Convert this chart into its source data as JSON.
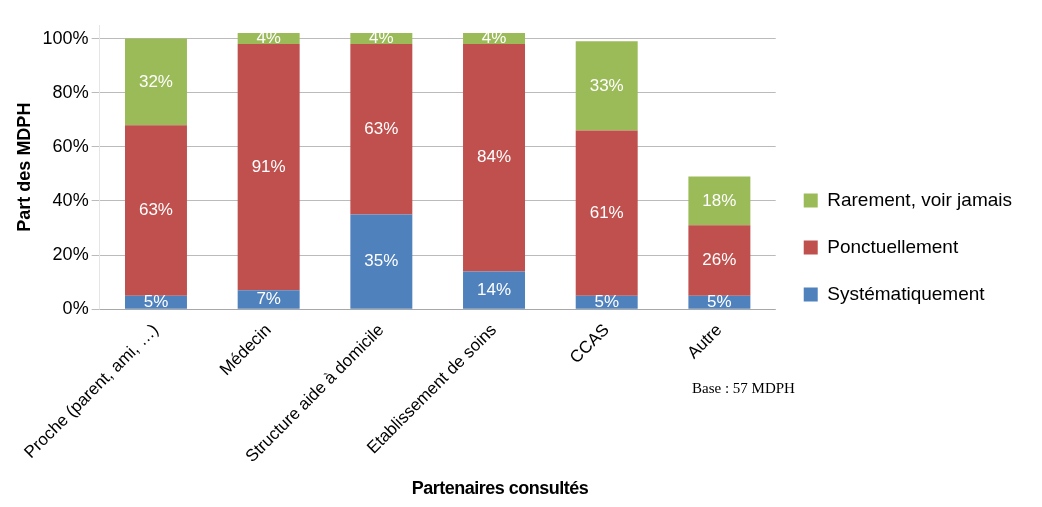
{
  "chart_data": {
    "type": "bar",
    "stacked": true,
    "xlabel": "Partenaires consultés",
    "ylabel": "Part des MDPH",
    "categories": [
      "Proche (parent, ami, …)",
      "Médecin",
      "Structure aide à domicile",
      "Etablissement de soins",
      "CCAS",
      "Autre"
    ],
    "series": [
      {
        "name": "Systématiquement",
        "color": "#4f81bd",
        "values": [
          5,
          7,
          35,
          14,
          5,
          5
        ],
        "value_labels": [
          "5%",
          "7%",
          "35%",
          "14%",
          "5%",
          "5%"
        ]
      },
      {
        "name": "Ponctuellement",
        "color": "#c0504d",
        "values": [
          63,
          91,
          63,
          84,
          61,
          26
        ],
        "value_labels": [
          "63%",
          "91%",
          "63%",
          "84%",
          "61%",
          "26%"
        ]
      },
      {
        "name": "Rarement, voir jamais",
        "color": "#9bbb59",
        "values": [
          32,
          4,
          4,
          4,
          33,
          18
        ],
        "value_labels": [
          "32%",
          "4%",
          "4%",
          "4%",
          "33%",
          "18%"
        ]
      }
    ],
    "ylim": [
      0,
      105
    ],
    "yticks": [
      {
        "value": 0,
        "label": "0%"
      },
      {
        "value": 20,
        "label": "20%"
      },
      {
        "value": 40,
        "label": "40%"
      },
      {
        "value": 60,
        "label": "60%"
      },
      {
        "value": 80,
        "label": "80%"
      },
      {
        "value": 100,
        "label": "100%"
      }
    ],
    "grid": "y",
    "legend": "right",
    "annotations": [
      "Base : 57 MDPH"
    ]
  }
}
